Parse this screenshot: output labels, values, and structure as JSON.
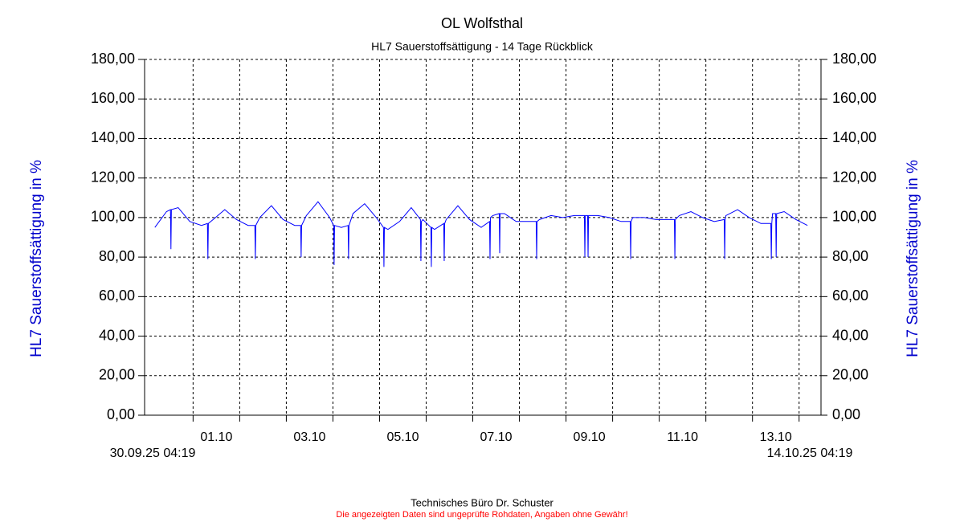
{
  "chart_data": {
    "type": "line",
    "title": "OL Wolfsthal",
    "subtitle": "HL7 Sauerstoffsättigung - 14 Tage Rückblick",
    "ylabel": "HL7 Sauerstoffsättigung in %",
    "y2label": "HL7 Sauerstoffsättigung in %",
    "footer": "Technisches Büro Dr. Schuster",
    "disclaimer": "Die angezeigten Daten sind ungeprüfte Rohdaten, Angaben ohne Gewähr!",
    "x_range_labels": [
      "30.09.25 04:19",
      "14.10.25 04:19"
    ],
    "xlim": [
      -0.22,
      14.29
    ],
    "xticks": [
      {
        "value": 0.82,
        "label": "01.10"
      },
      {
        "value": 1.82,
        "label": null
      },
      {
        "value": 2.82,
        "label": "03.10"
      },
      {
        "value": 3.82,
        "label": null
      },
      {
        "value": 4.82,
        "label": "05.10"
      },
      {
        "value": 5.82,
        "label": null
      },
      {
        "value": 6.82,
        "label": "07.10"
      },
      {
        "value": 7.82,
        "label": null
      },
      {
        "value": 8.82,
        "label": "09.10"
      },
      {
        "value": 9.82,
        "label": null
      },
      {
        "value": 10.82,
        "label": "11.10"
      },
      {
        "value": 11.82,
        "label": null
      },
      {
        "value": 12.82,
        "label": "13.10"
      },
      {
        "value": 13.82,
        "label": null
      }
    ],
    "ylim": [
      0,
      180
    ],
    "yticks": [
      {
        "value": 0,
        "label": "0,00"
      },
      {
        "value": 20,
        "label": "20,00"
      },
      {
        "value": 40,
        "label": "40,00"
      },
      {
        "value": 60,
        "label": "60,00"
      },
      {
        "value": 80,
        "label": "80,00"
      },
      {
        "value": 100,
        "label": "100,00"
      },
      {
        "value": 120,
        "label": "120,00"
      },
      {
        "value": 140,
        "label": "140,00"
      },
      {
        "value": 160,
        "label": "160,00"
      },
      {
        "value": 180,
        "label": "180,00"
      }
    ],
    "y2lim": [
      0,
      180
    ],
    "y2ticks": [
      {
        "value": 0,
        "label": "0,00"
      },
      {
        "value": 20,
        "label": "20,00"
      },
      {
        "value": 40,
        "label": "40,00"
      },
      {
        "value": 60,
        "label": "60,00"
      },
      {
        "value": 80,
        "label": "80,00"
      },
      {
        "value": 100,
        "label": "100,00"
      },
      {
        "value": 120,
        "label": "120,00"
      },
      {
        "value": 140,
        "label": "140,00"
      },
      {
        "value": 160,
        "label": "160,00"
      },
      {
        "value": 180,
        "label": "180,00"
      }
    ],
    "grid": true,
    "x": [
      0,
      0.25,
      0.335,
      0.345,
      0.355,
      0.5,
      0.75,
      1,
      1.128,
      1.138,
      1.148,
      1.25,
      1.5,
      1.75,
      2,
      2.145,
      2.155,
      2.165,
      2.25,
      2.5,
      2.75,
      3,
      3.128,
      3.138,
      3.148,
      3.25,
      3.5,
      3.75,
      3.835,
      3.845,
      3.855,
      4,
      4.145,
      4.155,
      4.165,
      4.25,
      4.5,
      4.75,
      4.904,
      4.914,
      4.924,
      5,
      5.25,
      5.5,
      5.697,
      5.707,
      5.717,
      5.75,
      5.921,
      5.931,
      5.941,
      6,
      6.197,
      6.207,
      6.217,
      6.25,
      6.5,
      6.75,
      7,
      7.18,
      7.19,
      7.2,
      7.25,
      7.387,
      7.397,
      7.407,
      7.5,
      7.75,
      8,
      8.18,
      8.19,
      8.2,
      8.25,
      8.5,
      8.75,
      9,
      9.214,
      9.224,
      9.234,
      9.283,
      9.293,
      9.303,
      9.5,
      9.75,
      10,
      10.197,
      10.207,
      10.217,
      10.25,
      10.5,
      10.75,
      11,
      11.145,
      11.155,
      11.165,
      11.25,
      11.5,
      11.75,
      12,
      12.214,
      12.224,
      12.234,
      12.25,
      12.5,
      12.75,
      13,
      13.214,
      13.224,
      13.234,
      13.25,
      13.318,
      13.328,
      13.338,
      13.5,
      13.75,
      14
    ],
    "series": [
      {
        "color": "#0000ff",
        "values": [
          95,
          103,
          104,
          84,
          104,
          105,
          98,
          96,
          97,
          79,
          97,
          99,
          104,
          99,
          96,
          96,
          79,
          96,
          100,
          106,
          99,
          96,
          96,
          80,
          96,
          101,
          108,
          100,
          96,
          76,
          96,
          95,
          96,
          79,
          96,
          102,
          107,
          100,
          95,
          75,
          95,
          94,
          98,
          105,
          99,
          78,
          98,
          99,
          95,
          75,
          95,
          94,
          97,
          78,
          97,
          99,
          106,
          99,
          95,
          98,
          79,
          100,
          101,
          102,
          82,
          102,
          102,
          98,
          98,
          98,
          79,
          98,
          99,
          101,
          100,
          101,
          101,
          80,
          101,
          101,
          80,
          101,
          101,
          100,
          98,
          98,
          79,
          98,
          100,
          100,
          99,
          99,
          99,
          79,
          99,
          101,
          103,
          100,
          98,
          99,
          79,
          99,
          101,
          104,
          100,
          97,
          97,
          79,
          97,
          102,
          102,
          80,
          102,
          103,
          99,
          96
        ]
      }
    ]
  }
}
